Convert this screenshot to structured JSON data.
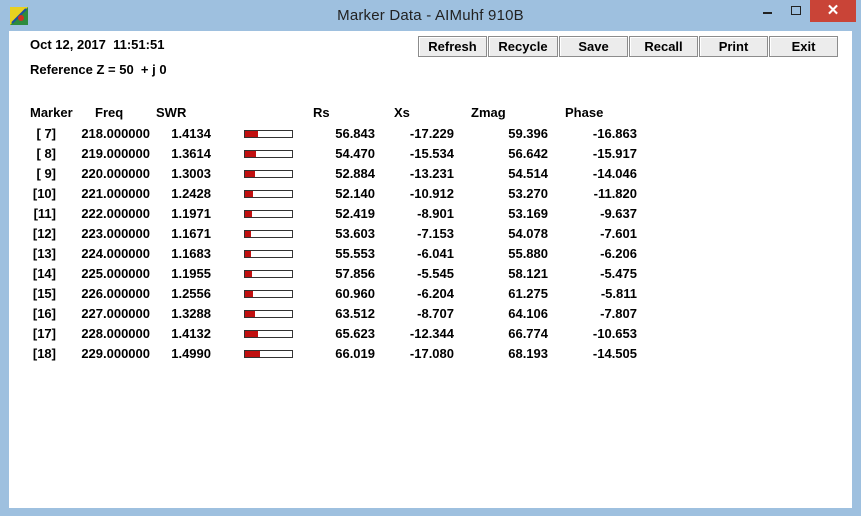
{
  "window": {
    "title": "Marker Data -   AIMuhf   910B",
    "close_glyph": "✕"
  },
  "info": {
    "date": "Oct 12, 2017  11:51:51",
    "reference": "Reference Z = 50  + j 0"
  },
  "toolbar": {
    "refresh_label": "Refresh",
    "recycle_label": "Recycle",
    "save_label": "Save",
    "recall_label": "Recall",
    "print_label": "Print",
    "exit_label": "Exit"
  },
  "columns": {
    "marker": "Marker",
    "freq": "Freq",
    "swr": "SWR",
    "rs": "Rs",
    "xs": "Xs",
    "zmag": "Zmag",
    "phase": "Phase"
  },
  "rows": [
    {
      "marker": "[ 7]",
      "freq": "218.000000",
      "swr": "1.4134",
      "swr_bar": 0.27,
      "rs": "56.843",
      "xs": "-17.229",
      "zmag": "59.396",
      "phase": "-16.863"
    },
    {
      "marker": "[ 8]",
      "freq": "219.000000",
      "swr": "1.3614",
      "swr_bar": 0.24,
      "rs": "54.470",
      "xs": "-15.534",
      "zmag": "56.642",
      "phase": "-15.917"
    },
    {
      "marker": "[ 9]",
      "freq": "220.000000",
      "swr": "1.3003",
      "swr_bar": 0.21,
      "rs": "52.884",
      "xs": "-13.231",
      "zmag": "54.514",
      "phase": "-14.046"
    },
    {
      "marker": "[10]",
      "freq": "221.000000",
      "swr": "1.2428",
      "swr_bar": 0.18,
      "rs": "52.140",
      "xs": "-10.912",
      "zmag": "53.270",
      "phase": "-11.820"
    },
    {
      "marker": "[11]",
      "freq": "222.000000",
      "swr": "1.1971",
      "swr_bar": 0.14,
      "rs": "52.419",
      "xs": "-8.901",
      "zmag": "53.169",
      "phase": "-9.637"
    },
    {
      "marker": "[12]",
      "freq": "223.000000",
      "swr": "1.1671",
      "swr_bar": 0.12,
      "rs": "53.603",
      "xs": "-7.153",
      "zmag": "54.078",
      "phase": "-7.601"
    },
    {
      "marker": "[13]",
      "freq": "224.000000",
      "swr": "1.1683",
      "swr_bar": 0.12,
      "rs": "55.553",
      "xs": "-6.041",
      "zmag": "55.880",
      "phase": "-6.206"
    },
    {
      "marker": "[14]",
      "freq": "225.000000",
      "swr": "1.1955",
      "swr_bar": 0.14,
      "rs": "57.856",
      "xs": "-5.545",
      "zmag": "58.121",
      "phase": "-5.475"
    },
    {
      "marker": "[15]",
      "freq": "226.000000",
      "swr": "1.2556",
      "swr_bar": 0.18,
      "rs": "60.960",
      "xs": "-6.204",
      "zmag": "61.275",
      "phase": "-5.811"
    },
    {
      "marker": "[16]",
      "freq": "227.000000",
      "swr": "1.3288",
      "swr_bar": 0.22,
      "rs": "63.512",
      "xs": "-8.707",
      "zmag": "64.106",
      "phase": "-7.807"
    },
    {
      "marker": "[17]",
      "freq": "228.000000",
      "swr": "1.4132",
      "swr_bar": 0.27,
      "rs": "65.623",
      "xs": "-12.344",
      "zmag": "66.774",
      "phase": "-10.653"
    },
    {
      "marker": "[18]",
      "freq": "229.000000",
      "swr": "1.4990",
      "swr_bar": 0.31,
      "rs": "66.019",
      "xs": "-17.080",
      "zmag": "68.193",
      "phase": "-14.505"
    }
  ],
  "colors": {
    "titlebar": "#9ec0df",
    "close_button": "#c94437",
    "swr_bar_fill": "#c01010"
  }
}
